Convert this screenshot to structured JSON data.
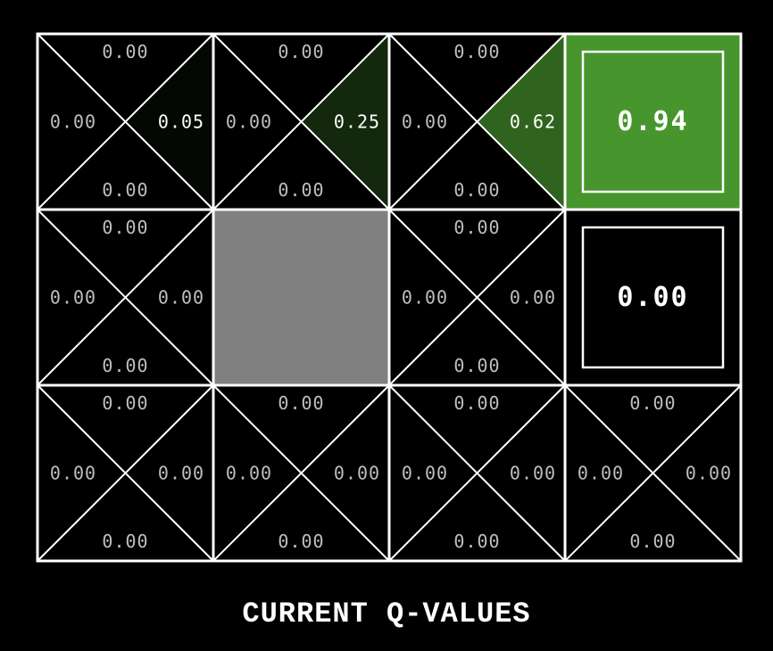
{
  "caption": "CURRENT Q-VALUES",
  "colors": {
    "background": "#000000",
    "grid_line": "#ffffff",
    "wall": "#808080",
    "positive_max": "#4ca030",
    "text": "#bfbfbf",
    "text_highlight": "#ffffff"
  },
  "grid": {
    "rows": 3,
    "cols": 4,
    "max_value": 1.0,
    "cells": [
      [
        {
          "type": "state",
          "q": {
            "up": "0.00",
            "down": "0.00",
            "left": "0.00",
            "right": "0.05"
          }
        },
        {
          "type": "state",
          "q": {
            "up": "0.00",
            "down": "0.00",
            "left": "0.00",
            "right": "0.25"
          }
        },
        {
          "type": "state",
          "q": {
            "up": "0.00",
            "down": "0.00",
            "left": "0.00",
            "right": "0.62"
          }
        },
        {
          "type": "terminal",
          "value": "0.94"
        }
      ],
      [
        {
          "type": "state",
          "q": {
            "up": "0.00",
            "down": "0.00",
            "left": "0.00",
            "right": "0.00"
          }
        },
        {
          "type": "wall"
        },
        {
          "type": "state",
          "q": {
            "up": "0.00",
            "down": "0.00",
            "left": "0.00",
            "right": "0.00"
          }
        },
        {
          "type": "terminal",
          "value": "0.00"
        }
      ],
      [
        {
          "type": "state",
          "q": {
            "up": "0.00",
            "down": "0.00",
            "left": "0.00",
            "right": "0.00"
          }
        },
        {
          "type": "state",
          "q": {
            "up": "0.00",
            "down": "0.00",
            "left": "0.00",
            "right": "0.00"
          }
        },
        {
          "type": "state",
          "q": {
            "up": "0.00",
            "down": "0.00",
            "left": "0.00",
            "right": "0.00"
          }
        },
        {
          "type": "state",
          "q": {
            "up": "0.00",
            "down": "0.00",
            "left": "0.00",
            "right": "0.00"
          }
        }
      ]
    ]
  }
}
